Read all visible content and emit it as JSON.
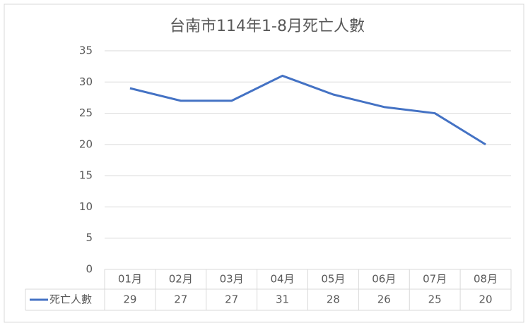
{
  "chart_data": {
    "type": "line",
    "title": "台南市114年1-8月死亡人數",
    "categories": [
      "01月",
      "02月",
      "03月",
      "04月",
      "05月",
      "06月",
      "07月",
      "08月"
    ],
    "series": [
      {
        "name": "死亡人數",
        "color": "#4472c4",
        "values": [
          29,
          27,
          27,
          31,
          28,
          26,
          25,
          20
        ]
      }
    ],
    "ylim": [
      0,
      35
    ],
    "yticks": [
      0,
      5,
      10,
      15,
      20,
      25,
      30,
      35
    ],
    "grid": true,
    "data_table": true
  }
}
